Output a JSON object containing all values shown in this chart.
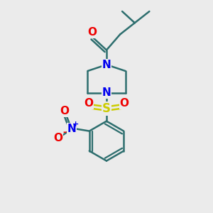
{
  "bg_color": "#ebebeb",
  "bond_color": "#2d6e6e",
  "N_color": "#0000ee",
  "O_color": "#ee0000",
  "S_color": "#cccc00",
  "line_width": 1.8,
  "font_size": 10,
  "fig_w": 3.0,
  "fig_h": 3.0,
  "dpi": 100,
  "xlim": [
    0,
    10
  ],
  "ylim": [
    0,
    10
  ]
}
